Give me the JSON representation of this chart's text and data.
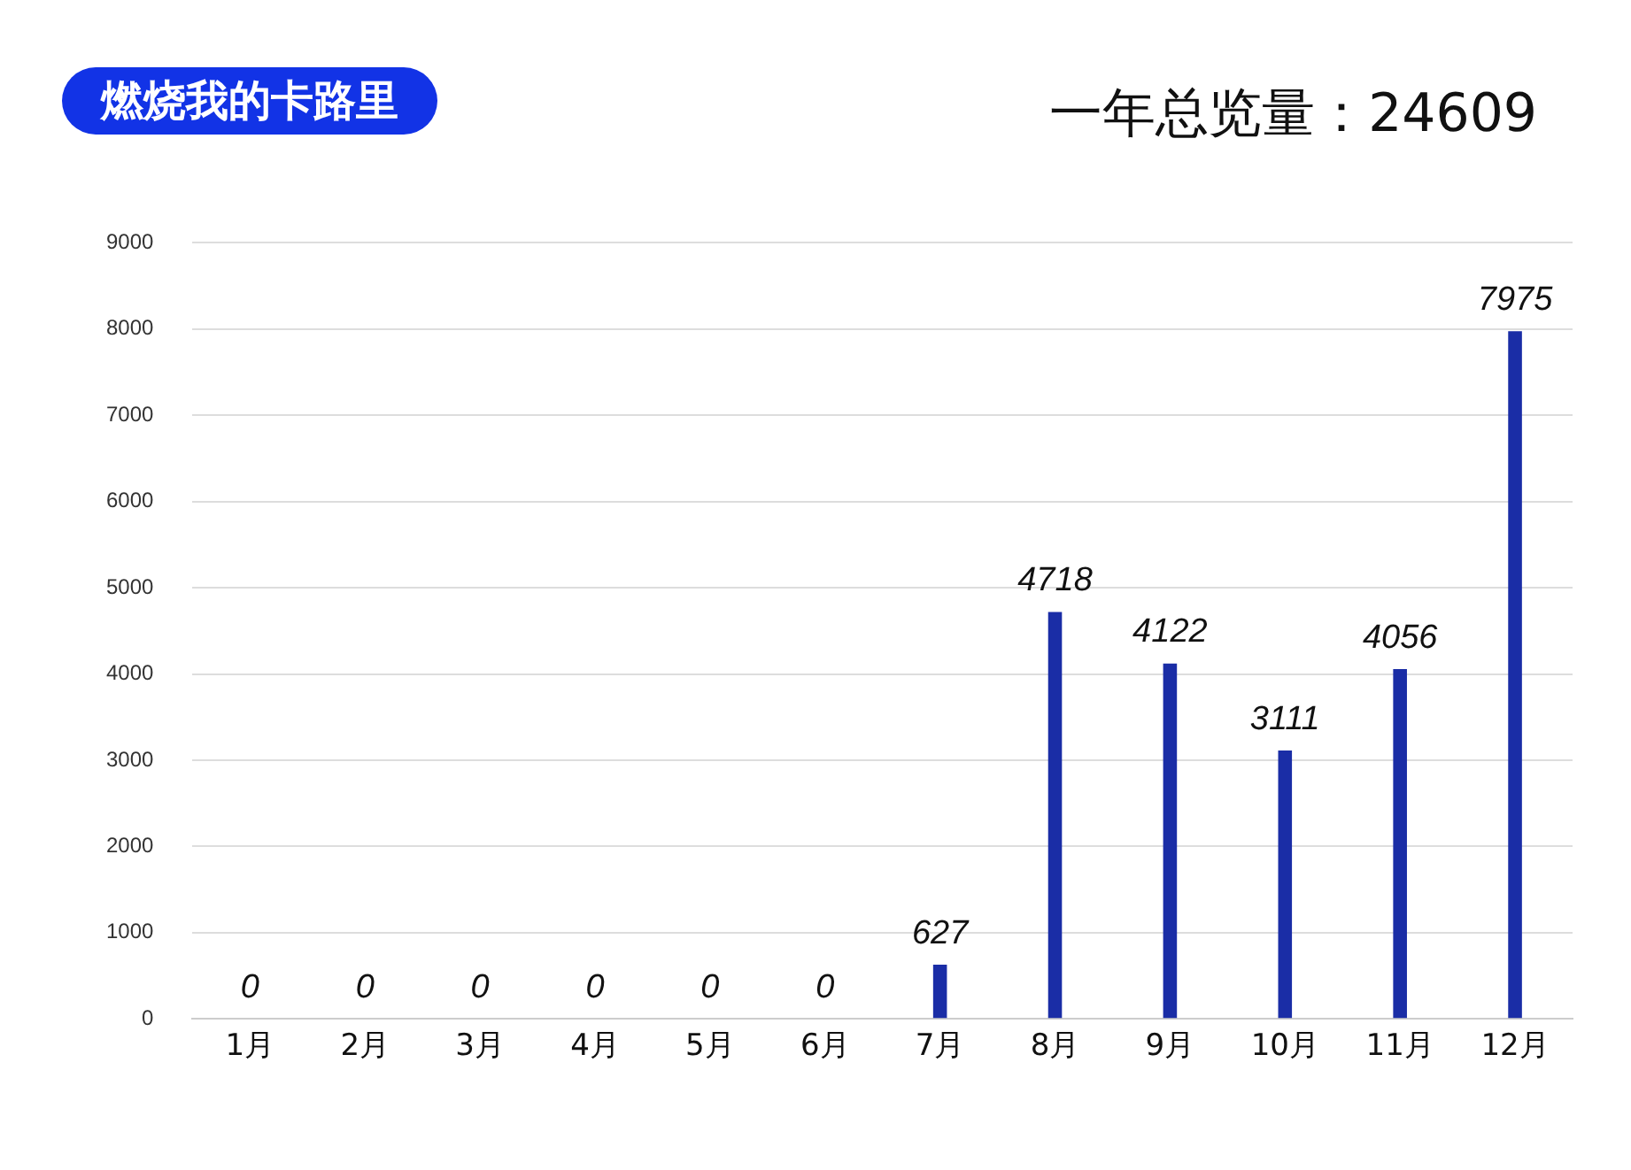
{
  "chart_data": {
    "type": "bar",
    "title": "燃烧我的卡路里",
    "subtitle": "一年总览量：24609",
    "categories": [
      "1月",
      "2月",
      "3月",
      "4月",
      "5月",
      "6月",
      "7月",
      "8月",
      "9月",
      "10月",
      "11月",
      "12月"
    ],
    "values": [
      0,
      0,
      0,
      0,
      0,
      0,
      627,
      4718,
      4122,
      3111,
      4056,
      7975
    ],
    "color": "#1a2da6",
    "ylim": [
      0,
      9000
    ],
    "yticks": [
      0,
      1000,
      2000,
      3000,
      4000,
      5000,
      6000,
      7000,
      8000,
      9000
    ],
    "grid": "y",
    "data_labels": true,
    "legend": false
  }
}
